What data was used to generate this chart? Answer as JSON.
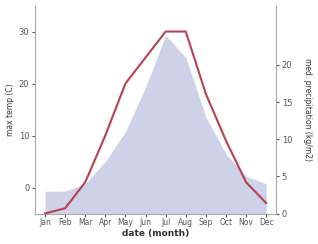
{
  "months": [
    "Jan",
    "Feb",
    "Mar",
    "Apr",
    "May",
    "Jun",
    "Jul",
    "Aug",
    "Sep",
    "Oct",
    "Nov",
    "Dec"
  ],
  "temp": [
    -5,
    -4,
    1,
    10,
    20,
    25,
    30,
    30,
    18,
    9,
    1,
    -3
  ],
  "precip": [
    3,
    3,
    4,
    7,
    11,
    17,
    24,
    21,
    13,
    8,
    5,
    4
  ],
  "temp_ylim": [
    -5,
    35
  ],
  "temp_yticks": [
    0,
    10,
    20,
    30
  ],
  "precip_ylim": [
    0,
    28
  ],
  "precip_yticks": [
    0,
    5,
    10,
    15,
    20
  ],
  "temp_color": "#b84050",
  "precip_fill_color": "#b8bfdf",
  "xlabel": "date (month)",
  "ylabel_left": "max temp (C)",
  "ylabel_right": "med. precipitation (kg/m2)",
  "bg_color": "#ffffff",
  "spine_color": "#aaaaaa",
  "tick_color": "#555555",
  "label_color": "#333333"
}
